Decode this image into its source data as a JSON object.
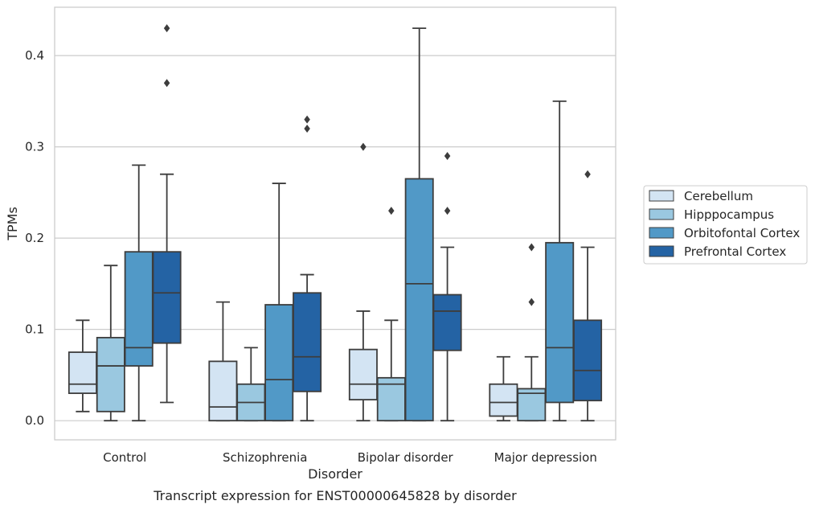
{
  "chart_data": {
    "type": "box",
    "xlabel": "Disorder",
    "ylabel": "TPMs",
    "caption": "Transcript expression for ENST00000645828 by disorder",
    "ylim": [
      -0.021,
      0.453
    ],
    "yticks": [
      "0.0",
      "0.1",
      "0.2",
      "0.3",
      "0.4"
    ],
    "grid": "horizontal",
    "legend_position": "right",
    "categories": [
      "Control",
      "Schizophrenia",
      "Bipolar disorder",
      "Major depression"
    ],
    "series": [
      {
        "name": "Cerebellum",
        "color": "#d3e4f3",
        "boxes": [
          {
            "whislo": 0.01,
            "q1": 0.03,
            "med": 0.04,
            "q3": 0.075,
            "whishi": 0.11,
            "fliers": []
          },
          {
            "whislo": 0.0,
            "q1": 0.0,
            "med": 0.015,
            "q3": 0.065,
            "whishi": 0.13,
            "fliers": []
          },
          {
            "whislo": 0.0,
            "q1": 0.023,
            "med": 0.04,
            "q3": 0.078,
            "whishi": 0.12,
            "fliers": [
              0.3
            ]
          },
          {
            "whislo": 0.0,
            "q1": 0.005,
            "med": 0.02,
            "q3": 0.04,
            "whishi": 0.07,
            "fliers": []
          }
        ]
      },
      {
        "name": "Hipppocampus",
        "color": "#9ac8e0",
        "boxes": [
          {
            "whislo": 0.0,
            "q1": 0.01,
            "med": 0.06,
            "q3": 0.091,
            "whishi": 0.17,
            "fliers": []
          },
          {
            "whislo": 0.0,
            "q1": 0.0,
            "med": 0.02,
            "q3": 0.04,
            "whishi": 0.08,
            "fliers": []
          },
          {
            "whislo": 0.0,
            "q1": 0.0,
            "med": 0.04,
            "q3": 0.047,
            "whishi": 0.11,
            "fliers": [
              0.23
            ]
          },
          {
            "whislo": 0.0,
            "q1": 0.0,
            "med": 0.03,
            "q3": 0.035,
            "whishi": 0.07,
            "fliers": [
              0.13,
              0.19
            ]
          }
        ]
      },
      {
        "name": "Orbitofontal Cortex",
        "color": "#5199c7",
        "boxes": [
          {
            "whislo": 0.0,
            "q1": 0.06,
            "med": 0.08,
            "q3": 0.185,
            "whishi": 0.28,
            "fliers": []
          },
          {
            "whislo": 0.0,
            "q1": 0.0,
            "med": 0.045,
            "q3": 0.127,
            "whishi": 0.26,
            "fliers": []
          },
          {
            "whislo": 0.0,
            "q1": 0.0,
            "med": 0.15,
            "q3": 0.265,
            "whishi": 0.43,
            "fliers": []
          },
          {
            "whislo": 0.0,
            "q1": 0.02,
            "med": 0.08,
            "q3": 0.195,
            "whishi": 0.35,
            "fliers": []
          }
        ]
      },
      {
        "name": "Prefrontal Cortex",
        "color": "#2463a4",
        "boxes": [
          {
            "whislo": 0.02,
            "q1": 0.085,
            "med": 0.14,
            "q3": 0.185,
            "whishi": 0.27,
            "fliers": [
              0.37,
              0.43
            ]
          },
          {
            "whislo": 0.0,
            "q1": 0.032,
            "med": 0.07,
            "q3": 0.14,
            "whishi": 0.16,
            "fliers": [
              0.32,
              0.33
            ]
          },
          {
            "whislo": 0.0,
            "q1": 0.077,
            "med": 0.12,
            "q3": 0.138,
            "whishi": 0.19,
            "fliers": [
              0.23,
              0.29
            ]
          },
          {
            "whislo": 0.0,
            "q1": 0.022,
            "med": 0.055,
            "q3": 0.11,
            "whishi": 0.19,
            "fliers": [
              0.27
            ]
          }
        ]
      }
    ]
  }
}
